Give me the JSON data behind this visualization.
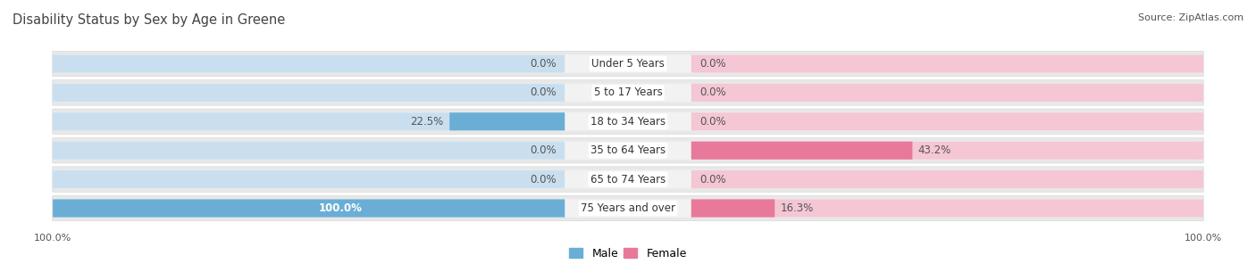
{
  "title": "Disability Status by Sex by Age in Greene",
  "source": "Source: ZipAtlas.com",
  "categories": [
    "Under 5 Years",
    "5 to 17 Years",
    "18 to 34 Years",
    "35 to 64 Years",
    "65 to 74 Years",
    "75 Years and over"
  ],
  "male_values": [
    0.0,
    0.0,
    22.5,
    0.0,
    0.0,
    100.0
  ],
  "female_values": [
    0.0,
    0.0,
    0.0,
    43.2,
    0.0,
    16.3
  ],
  "male_color": "#6aaed6",
  "female_color": "#e8799a",
  "male_bg_color": "#c9dff0",
  "female_bg_color": "#f5c6d4",
  "row_bg_color": "#e8e8e8",
  "row_bg_inner": "#f2f2f2",
  "max_val": 100.0,
  "label_color": "#555555",
  "white_label_color": "#ffffff",
  "title_color": "#444444",
  "title_fontsize": 10.5,
  "bar_label_fontsize": 8.5,
  "source_fontsize": 8,
  "legend_fontsize": 9,
  "axis_tick_fontsize": 8
}
